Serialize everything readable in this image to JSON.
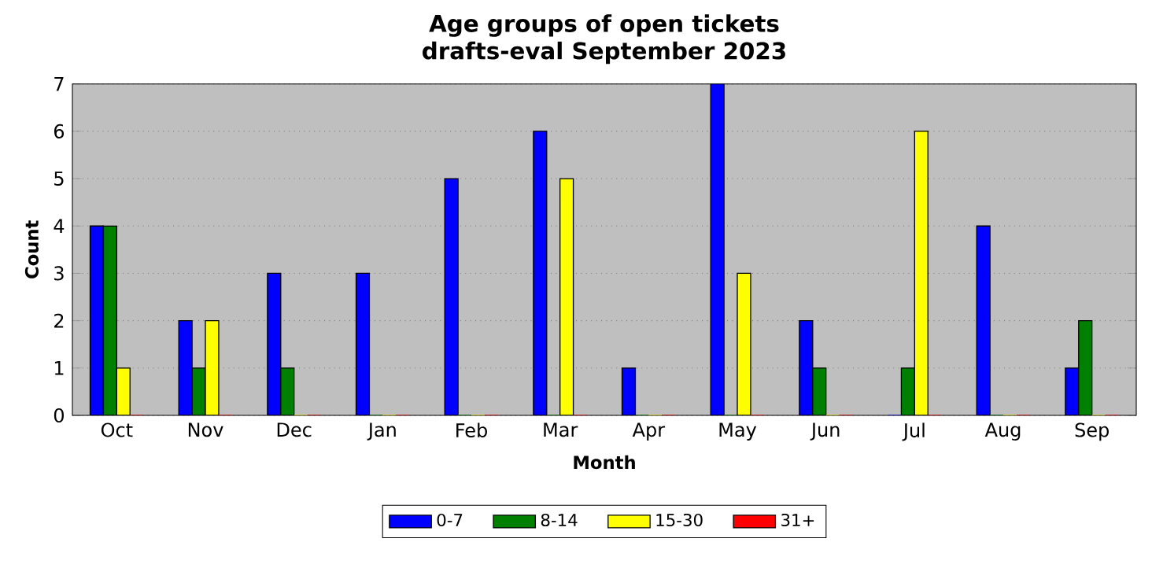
{
  "chart_data": {
    "type": "bar",
    "title": "Age groups of open tickets",
    "subtitle": "drafts-eval September 2023",
    "xlabel": "Month",
    "ylabel": "Count",
    "categories": [
      "Oct",
      "Nov",
      "Dec",
      "Jan",
      "Feb",
      "Mar",
      "Apr",
      "May",
      "Jun",
      "Jul",
      "Aug",
      "Sep"
    ],
    "series": [
      {
        "name": "0-7",
        "color": "#0000ff",
        "values": [
          4,
          2,
          3,
          3,
          5,
          6,
          1,
          7,
          2,
          0,
          4,
          1
        ]
      },
      {
        "name": "8-14",
        "color": "#008000",
        "values": [
          4,
          1,
          1,
          0,
          0,
          0,
          0,
          0,
          1,
          1,
          0,
          2
        ]
      },
      {
        "name": "15-30",
        "color": "#ffff00",
        "values": [
          1,
          2,
          0,
          0,
          0,
          5,
          0,
          3,
          0,
          6,
          0,
          0
        ]
      },
      {
        "name": "31+",
        "color": "#ff0000",
        "values": [
          0,
          0,
          0,
          0,
          0,
          0,
          0,
          0,
          0,
          0,
          0,
          0
        ]
      }
    ],
    "ylim": [
      0,
      7
    ],
    "yticks": [
      0,
      1,
      2,
      3,
      4,
      5,
      6,
      7
    ],
    "grid": "y",
    "legend": "bottom"
  }
}
